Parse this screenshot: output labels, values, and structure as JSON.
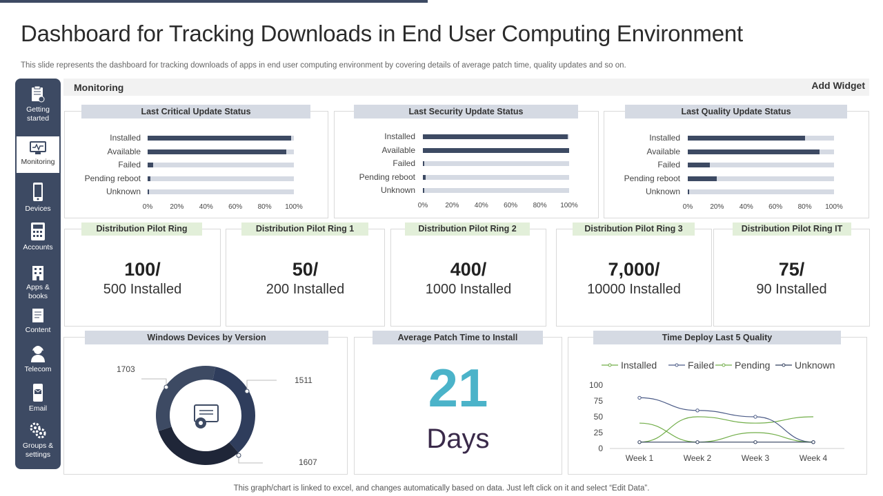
{
  "title": "Dashboard for Tracking Downloads in End User Computing Environment",
  "subtitle": "This slide represents the dashboard for tracking downloads of apps in end user computing environment by covering details of average patch time, quality updates and so on.",
  "footer": "This graph/chart is linked to excel,  and changes automatically based on data. Just left click on it and select “Edit Data”.",
  "sidebar": {
    "items": [
      {
        "label": "Getting started",
        "icon": "clipboard-icon"
      },
      {
        "label": "Monitoring",
        "icon": "monitor-icon"
      },
      {
        "label": "Devices",
        "icon": "phone-icon"
      },
      {
        "label": "Accounts",
        "icon": "calculator-icon"
      },
      {
        "label": "Apps & books",
        "icon": "building-icon"
      },
      {
        "label": "Content",
        "icon": "document-icon"
      },
      {
        "label": "Telecom",
        "icon": "headset-icon"
      },
      {
        "label": "Email",
        "icon": "mobile-mail-icon"
      },
      {
        "label": "Groups & settings",
        "icon": "gears-icon"
      }
    ]
  },
  "monitoring": {
    "label": "Monitoring",
    "add_widget": "Add Widget"
  },
  "status_panels": [
    {
      "title": "Last Critical Update Status",
      "rows": [
        {
          "label": "Installed",
          "value": 98
        },
        {
          "label": "Available",
          "value": 95
        },
        {
          "label": "Failed",
          "value": 4
        },
        {
          "label": "Pending reboot",
          "value": 2
        },
        {
          "label": "Unknown",
          "value": 1
        }
      ]
    },
    {
      "title": "Last Security Update Status",
      "rows": [
        {
          "label": "Installed",
          "value": 99
        },
        {
          "label": "Available",
          "value": 100
        },
        {
          "label": "Failed",
          "value": 1
        },
        {
          "label": "Pending reboot",
          "value": 2
        },
        {
          "label": "Unknown",
          "value": 1
        }
      ]
    },
    {
      "title": "Last Quality Update Status",
      "rows": [
        {
          "label": "Installed",
          "value": 80
        },
        {
          "label": "Available",
          "value": 90
        },
        {
          "label": "Failed",
          "value": 15
        },
        {
          "label": "Pending reboot",
          "value": 20
        },
        {
          "label": "Unknown",
          "value": 1
        }
      ]
    }
  ],
  "status_ticks": [
    "0%",
    "20%",
    "40%",
    "60%",
    "80%",
    "100%"
  ],
  "rings": [
    {
      "title": "Distribution Pilot Ring",
      "count": "100/",
      "installed": "500 Installed"
    },
    {
      "title": "Distribution Pilot Ring 1",
      "count": "50/",
      "installed": "200 Installed"
    },
    {
      "title": "Distribution  Pilot Ring  2",
      "count": "400/",
      "installed": "1000 Installed"
    },
    {
      "title": "Distribution Pilot Ring 3",
      "count": "7,000/",
      "installed": "10000 Installed"
    },
    {
      "title": "Distribution Pilot Ring IT",
      "count": "75/",
      "installed": "90 Installed"
    }
  ],
  "windows": {
    "title": "Windows Devices by Version",
    "segments": [
      {
        "label": "1703",
        "value": 1703
      },
      {
        "label": "1511",
        "value": 1511
      },
      {
        "label": "1607",
        "value": 1607
      }
    ]
  },
  "patch": {
    "title": "Average Patch Time to Install",
    "value": "21",
    "unit": "Days"
  },
  "colors": {
    "navy": "#3d4a63",
    "light": "#d5dae3",
    "green_tag": "#e2efd9",
    "teal": "#4bb3c9",
    "green": "#70ad47",
    "dark": "#2f3d5c"
  },
  "chart_data": {
    "type": "line",
    "title": "Time Deploy Last 5 Quality",
    "categories": [
      "Week 1",
      "Week 2",
      "Week 3",
      "Week 4"
    ],
    "ylim": [
      0,
      100
    ],
    "yticks": [
      "0",
      "25",
      "50",
      "75",
      "100"
    ],
    "series": [
      {
        "name": "Installed",
        "values": [
          10,
          50,
          40,
          50
        ],
        "color": "#70ad47"
      },
      {
        "name": "Failed",
        "values": [
          80,
          60,
          50,
          10
        ],
        "color": "#4a5a86"
      },
      {
        "name": "Pending",
        "values": [
          40,
          10,
          25,
          10
        ],
        "color": "#70ad47"
      },
      {
        "name": "Unknown",
        "values": [
          10,
          10,
          10,
          10
        ],
        "color": "#2f3d5c"
      }
    ]
  }
}
